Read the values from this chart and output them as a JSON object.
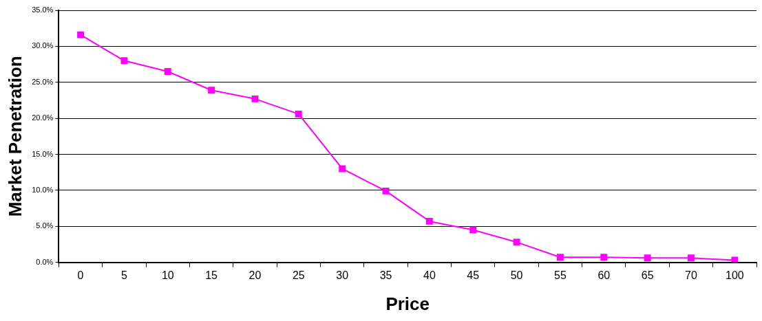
{
  "chart_data": {
    "type": "line",
    "xlabel": "Price",
    "ylabel": "Market Penetration",
    "categories": [
      "0",
      "5",
      "10",
      "15",
      "20",
      "25",
      "30",
      "35",
      "40",
      "45",
      "50",
      "55",
      "60",
      "65",
      "70",
      "100"
    ],
    "series": [
      {
        "color": "#ff00ff",
        "values": [
          31.6,
          28.0,
          26.5,
          23.9,
          22.7,
          20.6,
          13.0,
          9.9,
          5.7,
          4.5,
          2.8,
          0.7,
          0.7,
          0.6,
          0.6,
          0.3
        ]
      }
    ],
    "ylim": [
      0,
      35
    ],
    "yticks": [
      {
        "value": 0,
        "label": "0.0%"
      },
      {
        "value": 5,
        "label": "5.0%"
      },
      {
        "value": 10,
        "label": "10.0%"
      },
      {
        "value": 15,
        "label": "15.0%"
      },
      {
        "value": 20,
        "label": "20.0%"
      },
      {
        "value": 25,
        "label": "25.0%"
      },
      {
        "value": 30,
        "label": "30.0%"
      },
      {
        "value": 35,
        "label": "35.0%"
      }
    ],
    "grid": "y",
    "legend": false,
    "marker": "square",
    "line_style": "solid"
  }
}
